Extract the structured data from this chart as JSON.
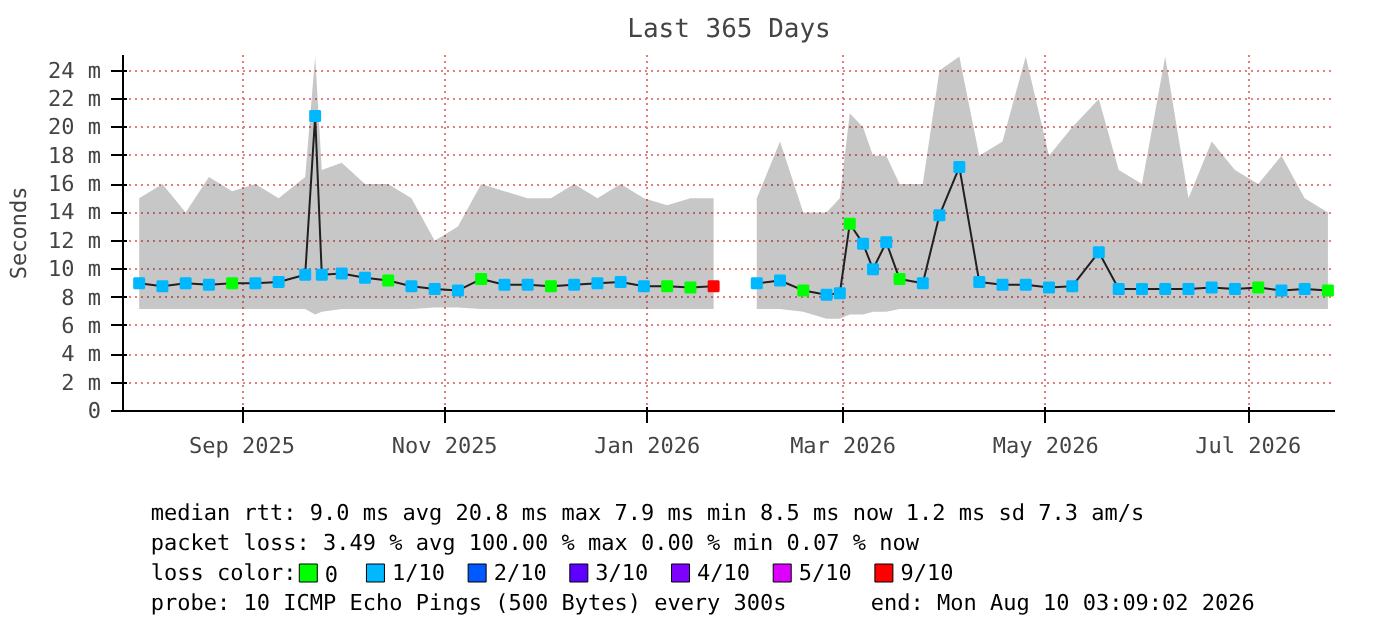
{
  "chart_data": {
    "type": "line",
    "title": "Last 365 Days",
    "ylabel": "Seconds",
    "legend_title": "loss color:",
    "legend": "bottom",
    "grid": true,
    "x": [
      "2025-08-15",
      "2025-08-22",
      "2025-08-29",
      "2025-09-05",
      "2025-09-12",
      "2025-09-19",
      "2025-09-26",
      "2025-10-04",
      "2025-10-07",
      "2025-10-09",
      "2025-10-15",
      "2025-10-22",
      "2025-10-29",
      "2025-11-05",
      "2025-11-12",
      "2025-11-19",
      "2025-11-26",
      "2025-12-03",
      "2025-12-10",
      "2025-12-17",
      "2025-12-24",
      "2025-12-31",
      "2026-01-07",
      "2026-01-14",
      "2026-01-21",
      "2026-01-28",
      "2026-02-04",
      "2026-02-10",
      "2026-02-17",
      "2026-02-24",
      "2026-03-03",
      "2026-03-10",
      "2026-03-14",
      "2026-03-17",
      "2026-03-21",
      "2026-03-24",
      "2026-03-28",
      "2026-04-01",
      "2026-04-08",
      "2026-04-13",
      "2026-04-19",
      "2026-04-25",
      "2026-05-02",
      "2026-05-09",
      "2026-05-16",
      "2026-05-23",
      "2026-05-31",
      "2026-06-06",
      "2026-06-13",
      "2026-06-20",
      "2026-06-27",
      "2026-07-04",
      "2026-07-11",
      "2026-07-18",
      "2026-07-25",
      "2026-08-01",
      "2026-08-08"
    ],
    "xlim": [
      "2025-08-10T03:09",
      "2026-08-10T03:09"
    ],
    "xticks": [
      {
        "value": "2025-09-15",
        "label": "Sep 2025"
      },
      {
        "value": "2025-11-15",
        "label": "Nov 2025"
      },
      {
        "value": "2026-01-15",
        "label": "Jan 2026"
      },
      {
        "value": "2026-03-15",
        "label": "Mar 2026"
      },
      {
        "value": "2026-05-15",
        "label": "May 2026"
      },
      {
        "value": "2026-07-15",
        "label": "Jul 2026"
      }
    ],
    "ylim": [
      0,
      25.1
    ],
    "yticks": [
      0,
      {
        "value": 2,
        "label": "2 m"
      },
      {
        "value": 4,
        "label": "4 m"
      },
      {
        "value": 6,
        "label": "6 m"
      },
      {
        "value": 8,
        "label": "8 m"
      },
      {
        "value": 10,
        "label": "10 m"
      },
      {
        "value": 12,
        "label": "12 m"
      },
      {
        "value": 14,
        "label": "14 m"
      },
      {
        "value": 16,
        "label": "16 m"
      },
      {
        "value": 18,
        "label": "18 m"
      },
      {
        "value": 20,
        "label": "20 m"
      },
      {
        "value": 22,
        "label": "22 m"
      },
      {
        "value": 24,
        "label": "24 m"
      }
    ],
    "series": [
      {
        "color": "#202020",
        "values": [
          9.0,
          8.8,
          9.0,
          8.9,
          9.0,
          9.0,
          9.1,
          9.6,
          20.8,
          9.6,
          9.7,
          9.4,
          9.2,
          8.8,
          8.6,
          8.5,
          9.3,
          8.9,
          8.9,
          8.8,
          8.9,
          9.0,
          9.1,
          8.8,
          8.8,
          8.7,
          8.8,
          null,
          9.0,
          9.2,
          8.5,
          8.2,
          8.3,
          13.2,
          11.8,
          10.0,
          11.9,
          9.3,
          9.0,
          13.8,
          17.2,
          9.1,
          8.9,
          8.9,
          8.7,
          8.8,
          11.2,
          8.6,
          8.6,
          8.6,
          8.6,
          8.7,
          8.6,
          8.7,
          8.5,
          8.6,
          8.5
        ],
        "lower": [
          7.2,
          7.2,
          7.2,
          7.2,
          7.2,
          7.2,
          7.2,
          7.2,
          6.8,
          7.0,
          7.2,
          7.2,
          7.2,
          7.2,
          7.3,
          7.3,
          7.2,
          7.2,
          7.2,
          7.2,
          7.2,
          7.2,
          7.2,
          7.2,
          7.2,
          7.2,
          7.2,
          null,
          7.2,
          7.2,
          7.0,
          6.5,
          6.5,
          6.8,
          6.8,
          7.0,
          7.0,
          7.2,
          7.2,
          7.2,
          7.2,
          7.2,
          7.2,
          7.2,
          7.2,
          7.2,
          7.2,
          7.2,
          7.2,
          7.2,
          7.2,
          7.2,
          7.2,
          7.2,
          7.2,
          7.2,
          7.2
        ],
        "upper": [
          15.0,
          16.0,
          14.0,
          16.5,
          15.5,
          16.0,
          15.0,
          16.5,
          25.0,
          17.0,
          17.5,
          16.0,
          16.0,
          15.0,
          12.0,
          13.0,
          16.0,
          15.5,
          15.0,
          15.0,
          16.0,
          15.0,
          16.0,
          15.0,
          14.5,
          15.0,
          15.0,
          null,
          15.0,
          19.0,
          14.0,
          14.0,
          15.0,
          21.0,
          20.0,
          18.0,
          18.0,
          16.0,
          16.0,
          24.0,
          25.0,
          18.0,
          19.0,
          25.0,
          18.0,
          20.0,
          22.0,
          17.0,
          16.0,
          25.0,
          15.0,
          19.0,
          17.0,
          16.0,
          18.0,
          15.0,
          14.0
        ]
      },
      {
        "type": "scatter",
        "marker": "square",
        "name": "0",
        "color": "#00ff00",
        "x": [
          "2025-09-12",
          "2025-10-29",
          "2025-11-26",
          "2025-12-17",
          "2026-01-21",
          "2026-01-28",
          "2026-03-03",
          "2026-03-17",
          "2026-04-01",
          "2026-07-18",
          "2026-08-08"
        ],
        "values": [
          9.0,
          9.2,
          9.3,
          8.8,
          8.8,
          8.7,
          8.5,
          13.2,
          9.3,
          8.7,
          8.5
        ]
      },
      {
        "type": "scatter",
        "marker": "square",
        "name": "1/10",
        "color": "#00b8ff",
        "x": [
          "2025-08-15",
          "2025-08-22",
          "2025-08-29",
          "2025-09-05",
          "2025-09-19",
          "2025-09-26",
          "2025-10-04",
          "2025-10-07",
          "2025-10-09",
          "2025-10-15",
          "2025-10-22",
          "2025-11-05",
          "2025-11-12",
          "2025-11-19",
          "2025-12-03",
          "2025-12-10",
          "2025-12-24",
          "2025-12-31",
          "2026-01-07",
          "2026-01-14",
          "2026-02-17",
          "2026-02-24",
          "2026-03-10",
          "2026-03-14",
          "2026-03-21",
          "2026-03-24",
          "2026-03-28",
          "2026-04-08",
          "2026-04-13",
          "2026-04-19",
          "2026-04-25",
          "2026-05-02",
          "2026-05-09",
          "2026-05-16",
          "2026-05-23",
          "2026-05-31",
          "2026-06-06",
          "2026-06-13",
          "2026-06-20",
          "2026-06-27",
          "2026-07-04",
          "2026-07-11",
          "2026-07-25",
          "2026-08-01"
        ],
        "values": [
          9.0,
          8.8,
          9.0,
          8.9,
          9.0,
          9.1,
          9.6,
          20.8,
          9.6,
          9.7,
          9.4,
          8.8,
          8.6,
          8.5,
          8.9,
          8.9,
          8.9,
          9.0,
          9.1,
          8.8,
          9.0,
          9.2,
          8.2,
          8.3,
          11.8,
          10.0,
          11.9,
          9.0,
          13.8,
          17.2,
          9.1,
          8.9,
          8.9,
          8.7,
          8.8,
          11.2,
          8.6,
          8.6,
          8.6,
          8.6,
          8.7,
          8.6,
          8.5,
          8.6
        ]
      },
      {
        "type": "scatter",
        "marker": "square",
        "name": "2/10",
        "color": "#0059ff",
        "values": [
          null,
          null,
          null,
          null,
          null,
          null,
          null,
          null,
          null,
          null,
          null,
          null,
          null,
          null,
          null,
          null,
          null,
          null,
          null,
          null,
          null,
          null,
          null,
          null,
          null,
          null,
          null,
          null,
          null,
          null,
          null,
          null,
          null,
          null,
          null,
          null,
          null,
          null,
          null,
          null,
          null,
          null,
          null,
          null,
          null,
          null,
          null,
          null,
          null,
          null,
          null,
          null,
          null,
          null,
          null,
          null,
          null
        ]
      },
      {
        "type": "scatter",
        "marker": "square",
        "name": "3/10",
        "color": "#5e00ff",
        "values": [
          null,
          null,
          null,
          null,
          null,
          null,
          null,
          null,
          null,
          null,
          null,
          null,
          null,
          null,
          null,
          null,
          null,
          null,
          null,
          null,
          null,
          null,
          null,
          null,
          null,
          null,
          null,
          null,
          null,
          null,
          null,
          null,
          null,
          null,
          null,
          null,
          null,
          null,
          null,
          null,
          null,
          null,
          null,
          null,
          null,
          null,
          null,
          null,
          null,
          null,
          null,
          null,
          null,
          null,
          null,
          null,
          null
        ]
      },
      {
        "type": "scatter",
        "marker": "square",
        "name": "4/10",
        "color": "#7e00ff",
        "values": [
          null,
          null,
          null,
          null,
          null,
          null,
          null,
          null,
          null,
          null,
          null,
          null,
          null,
          null,
          null,
          null,
          null,
          null,
          null,
          null,
          null,
          null,
          null,
          null,
          null,
          null,
          null,
          null,
          null,
          null,
          null,
          null,
          null,
          null,
          null,
          null,
          null,
          null,
          null,
          null,
          null,
          null,
          null,
          null,
          null,
          null,
          null,
          null,
          null,
          null,
          null,
          null,
          null,
          null,
          null,
          null,
          null
        ]
      },
      {
        "type": "scatter",
        "marker": "square",
        "name": "5/10",
        "color": "#dd00ff",
        "values": [
          null,
          null,
          null,
          null,
          null,
          null,
          null,
          null,
          null,
          null,
          null,
          null,
          null,
          null,
          null,
          null,
          null,
          null,
          null,
          null,
          null,
          null,
          null,
          null,
          null,
          null,
          null,
          null,
          null,
          null,
          null,
          null,
          null,
          null,
          null,
          null,
          null,
          null,
          null,
          null,
          null,
          null,
          null,
          null,
          null,
          null,
          null,
          null,
          null,
          null,
          null,
          null,
          null,
          null,
          null,
          null,
          null
        ]
      },
      {
        "type": "scatter",
        "marker": "square",
        "name": "9/10",
        "color": "#ff0000",
        "x": [
          "2026-02-04"
        ],
        "values": [
          8.8
        ]
      }
    ],
    "annotations": [
      "median rtt:  9.0 ms avg  20.8 ms max  7.9 ms min  8.5 ms now  1.2 ms sd  7.3   am/s",
      "packet loss: 3.49 % avg  100.00 % max  0.00 % min  0.07 % now",
      "probe:       10 ICMP Echo Pings (500 Bytes) every 300s",
      "end: Mon Aug 10 03:09:02 2026"
    ]
  }
}
